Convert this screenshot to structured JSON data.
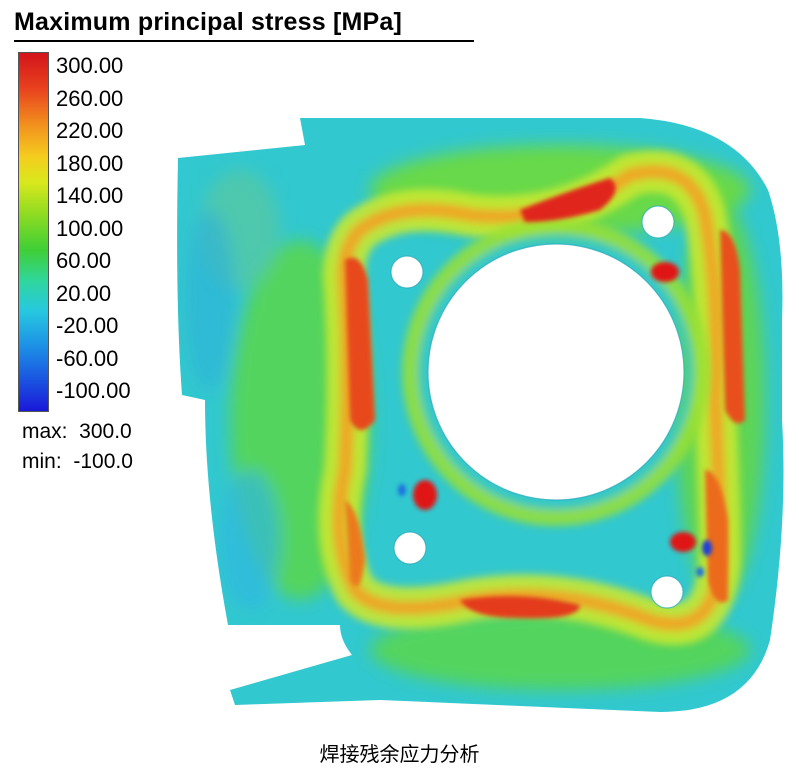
{
  "legend": {
    "title": "Maximum principal stress [MPa]",
    "ticks": [
      "300.00",
      "260.00",
      "220.00",
      "180.00",
      "140.00",
      "100.00",
      "60.00",
      "20.00",
      "-20.00",
      "-60.00",
      "-100.00"
    ],
    "max_label": "max:  300.0",
    "min_label": "min:  -100.0",
    "colors": [
      "#d4141c",
      "#f2901e",
      "#f5cd1e",
      "#3fcf36",
      "#27c8e0",
      "#1a18d8"
    ]
  },
  "caption": "焊接残余应力分析"
}
